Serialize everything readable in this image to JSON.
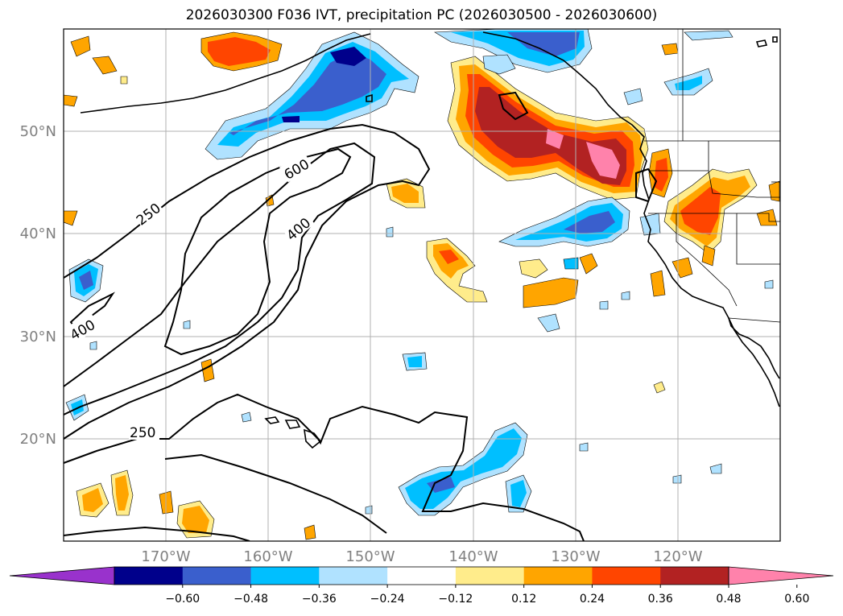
{
  "title": "2026030300 F036 IVT, precipitation PC (2026030500 - 2026030600)",
  "map": {
    "lon_range": [
      -180,
      -110
    ],
    "lat_range": [
      10,
      60
    ],
    "lat_labels": [
      "50°N",
      "40°N",
      "30°N",
      "20°N"
    ],
    "lon_labels": [
      "170°W",
      "160°W",
      "150°W",
      "140°W",
      "130°W",
      "120°W"
    ],
    "ivt_contour_labels": [
      "250",
      "600",
      "400",
      "400",
      "250"
    ]
  },
  "colorbar": {
    "ticks": [
      "−0.60",
      "−0.48",
      "−0.36",
      "−0.24",
      "−0.12",
      "0.12",
      "0.24",
      "0.36",
      "0.48",
      "0.60"
    ],
    "colors": [
      "#9932cc",
      "#00008b",
      "#3a5fcd",
      "#00bfff",
      "#b0e2ff",
      "#ffffff",
      "#ffec8b",
      "#ffa500",
      "#ff4500",
      "#b22222",
      "#ff82ab"
    ],
    "extend": "both"
  },
  "colors": {
    "grid": "#b0b0b0",
    "tick_label": "#808080",
    "contour": "#000000"
  }
}
